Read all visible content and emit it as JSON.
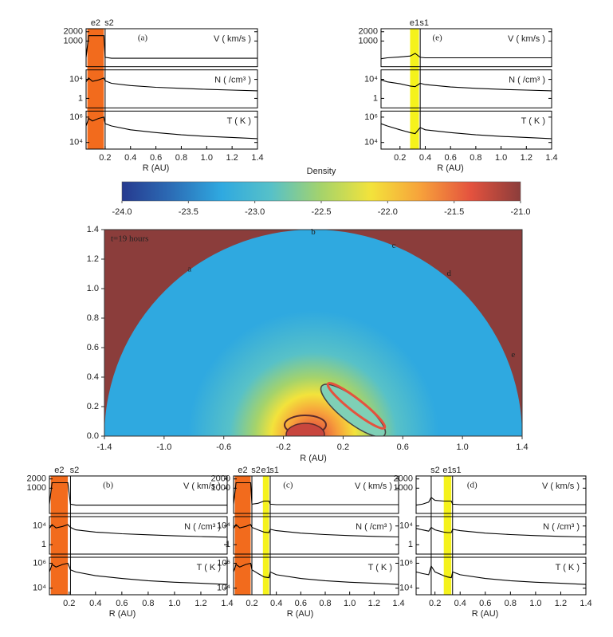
{
  "chart_data": [
    {
      "type": "profile",
      "label": "(a)",
      "xlabel": "R (AU)",
      "xlim": [
        0.05,
        1.4
      ],
      "xticks": [
        0.2,
        0.4,
        0.6,
        0.8,
        {
          "value": 1,
          "label": "1.0"
        },
        1.2,
        1.4
      ],
      "bands": [
        {
          "label": "e2",
          "x": [
            0.06,
            0.19
          ],
          "color": "#f26b1d"
        }
      ],
      "shocks": [
        {
          "label": "s2",
          "x": 0.2
        }
      ],
      "x": [
        0.05,
        0.07,
        0.1,
        0.15,
        0.19,
        0.2,
        0.25,
        0.4,
        0.6,
        0.8,
        1.0,
        1.2,
        1.4
      ],
      "rows": [
        {
          "name": "V ( km/s )",
          "log": true,
          "ylim": [
            150,
            2500
          ],
          "yticks": [
            1000,
            2000
          ],
          "values": [
            300,
            1500,
            1500,
            1500,
            1500,
            300,
            280,
            280,
            280,
            280,
            280,
            280,
            280
          ]
        },
        {
          "name": "N ( /cm³ )",
          "log": true,
          "ylim": [
            0.01,
            1000000
          ],
          "yticks": [
            1,
            {
              "value": 10000,
              "label": "10⁴"
            }
          ],
          "values": [
            3000,
            20000,
            4000,
            8000,
            20000,
            5000,
            1500,
            500,
            220,
            130,
            80,
            55,
            40
          ]
        },
        {
          "name": "T ( K )",
          "log": true,
          "ylim": [
            3000,
            3000000
          ],
          "yticks": [
            {
              "value": 10000,
              "label": "10⁴"
            },
            {
              "value": 1000000,
              "label": "10⁶"
            }
          ],
          "values": [
            200000,
            800000,
            500000,
            800000,
            1000000,
            300000,
            200000,
            100000,
            60000,
            40000,
            30000,
            25000,
            20000
          ]
        }
      ]
    },
    {
      "type": "profile",
      "label": "(e)",
      "xlabel": "R (AU)",
      "xlim": [
        0.05,
        1.4
      ],
      "xticks": [
        0.2,
        0.4,
        0.6,
        0.8,
        {
          "value": 1,
          "label": "1.0"
        },
        1.2,
        1.4
      ],
      "bands": [
        {
          "label": "e1",
          "x": [
            0.28,
            0.35
          ],
          "color": "#f5f21c"
        }
      ],
      "shocks": [
        {
          "label": "s1",
          "x": 0.36
        }
      ],
      "x": [
        0.05,
        0.1,
        0.2,
        0.28,
        0.32,
        0.36,
        0.4,
        0.6,
        0.8,
        1.0,
        1.2,
        1.4
      ],
      "rows": [
        {
          "name": "V ( km/s )",
          "log": true,
          "ylim": [
            150,
            2500
          ],
          "yticks": [
            1000,
            2000
          ],
          "values": [
            270,
            290,
            310,
            330,
            400,
            300,
            290,
            290,
            290,
            290,
            290,
            290
          ]
        },
        {
          "name": "N ( /cm³ )",
          "log": true,
          "ylim": [
            0.01,
            1000000
          ],
          "yticks": [
            1,
            {
              "value": 10000,
              "label": "10⁴"
            }
          ],
          "values": [
            8000,
            3000,
            1200,
            400,
            300,
            1500,
            800,
            250,
            130,
            80,
            55,
            40
          ]
        },
        {
          "name": "T ( K )",
          "log": true,
          "ylim": [
            3000,
            3000000
          ],
          "yticks": [
            {
              "value": 10000,
              "label": "10⁴"
            },
            {
              "value": 1000000,
              "label": "10⁶"
            }
          ],
          "values": [
            300000,
            200000,
            100000,
            60000,
            50000,
            150000,
            100000,
            60000,
            40000,
            30000,
            25000,
            20000
          ]
        }
      ]
    },
    {
      "type": "density-map",
      "title": "Density",
      "annotation": "t=19 hours",
      "xlabel": "R (AU)",
      "colormap": [
        "#263a8f",
        "#2c6db6",
        "#2fa9e0",
        "#57c1c8",
        "#a5d36b",
        "#f3e33b",
        "#f7a13b",
        "#e4523e",
        "#8b3d3b"
      ],
      "clim": [
        -24,
        -21
      ],
      "cticks": [
        {
          "value": -24,
          "label": "-24.0"
        },
        -23.5,
        {
          "value": -23,
          "label": "-23.0"
        },
        -22.5,
        {
          "value": -22,
          "label": "-22.0"
        },
        -21.5,
        {
          "value": -21,
          "label": "-21.0"
        }
      ],
      "xlim": [
        -1.4,
        1.4
      ],
      "xticks": [
        -1.4,
        {
          "value": -1,
          "label": "-1.0"
        },
        -0.6,
        -0.2,
        0.2,
        0.6,
        {
          "value": 1,
          "label": "1.0"
        },
        1.4
      ],
      "ylim": [
        0,
        1.4
      ],
      "yticks": [
        {
          "value": 0,
          "label": "0.0"
        },
        0.2,
        0.4,
        0.6,
        0.8,
        {
          "value": 1,
          "label": "1.0"
        },
        1.2,
        1.4
      ],
      "points": [
        {
          "label": "a",
          "x": -0.83,
          "y": 1.13
        },
        {
          "label": "b",
          "x": 0.0,
          "y": 1.38
        },
        {
          "label": "c",
          "x": 0.54,
          "y": 1.29
        },
        {
          "label": "d",
          "x": 0.91,
          "y": 1.1
        },
        {
          "label": "e",
          "x": 1.34,
          "y": 0.55
        }
      ]
    },
    {
      "type": "profile",
      "label": "(b)",
      "xlabel": "R (AU)",
      "xlim": [
        0.05,
        1.4
      ],
      "xticks": [
        0.2,
        0.4,
        0.6,
        0.8,
        {
          "value": 1,
          "label": "1.0"
        },
        1.2,
        1.4
      ],
      "bands": [
        {
          "label": "e2",
          "x": [
            0.06,
            0.19
          ],
          "color": "#f26b1d"
        }
      ],
      "shocks": [
        {
          "label": "s2",
          "x": 0.21
        }
      ],
      "x": [
        0.05,
        0.07,
        0.1,
        0.15,
        0.19,
        0.21,
        0.25,
        0.4,
        0.6,
        0.8,
        1.0,
        1.2,
        1.4
      ],
      "rows": [
        {
          "name": "V ( km/s )",
          "log": true,
          "ylim": [
            150,
            2500
          ],
          "yticks": [
            1000,
            2000
          ],
          "values": [
            300,
            1500,
            1500,
            1500,
            1500,
            300,
            280,
            280,
            280,
            280,
            280,
            280,
            280
          ]
        },
        {
          "name": "N ( /cm³ )",
          "log": true,
          "ylim": [
            0.01,
            1000000
          ],
          "yticks": [
            1,
            {
              "value": 10000,
              "label": "10⁴"
            }
          ],
          "values": [
            3000,
            20000,
            4000,
            8000,
            20000,
            5000,
            1500,
            500,
            220,
            130,
            80,
            55,
            40
          ]
        },
        {
          "name": "T ( K )",
          "log": true,
          "ylim": [
            3000,
            3000000
          ],
          "yticks": [
            {
              "value": 10000,
              "label": "10⁴"
            },
            {
              "value": 1000000,
              "label": "10⁶"
            }
          ],
          "values": [
            200000,
            800000,
            500000,
            800000,
            1000000,
            300000,
            200000,
            100000,
            60000,
            40000,
            30000,
            25000,
            20000
          ]
        }
      ]
    },
    {
      "type": "profile",
      "label": "(c)",
      "xlabel": "R (AU)",
      "xlim": [
        0.05,
        1.4
      ],
      "xticks": [
        0.2,
        0.4,
        0.6,
        0.8,
        {
          "value": 1,
          "label": "1.0"
        },
        1.2,
        1.4
      ],
      "bands": [
        {
          "label": "e2",
          "x": [
            0.06,
            0.19
          ],
          "color": "#f26b1d"
        },
        {
          "label": "e1",
          "x": [
            0.29,
            0.34
          ],
          "color": "#f5f21c"
        }
      ],
      "shocks": [
        {
          "label": "s2",
          "x": 0.2
        },
        {
          "label": "s1",
          "x": 0.35
        }
      ],
      "x": [
        0.05,
        0.07,
        0.1,
        0.15,
        0.19,
        0.2,
        0.25,
        0.3,
        0.34,
        0.35,
        0.4,
        0.6,
        0.8,
        1.0,
        1.2,
        1.4
      ],
      "rows": [
        {
          "name": "V ( km/s )",
          "log": true,
          "ylim": [
            150,
            2500
          ],
          "yticks": [
            1000,
            2000
          ],
          "values": [
            300,
            1500,
            1500,
            1500,
            1500,
            300,
            320,
            380,
            380,
            300,
            290,
            290,
            290,
            290,
            290,
            290
          ]
        },
        {
          "name": "N ( /cm³ )",
          "log": true,
          "ylim": [
            0.01,
            1000000
          ],
          "yticks": [
            1,
            {
              "value": 10000,
              "label": "10⁴"
            }
          ],
          "values": [
            3000,
            20000,
            4000,
            8000,
            20000,
            5000,
            1500,
            500,
            400,
            2000,
            1000,
            300,
            150,
            90,
            60,
            45
          ]
        },
        {
          "name": "T ( K )",
          "log": true,
          "ylim": [
            3000,
            3000000
          ],
          "yticks": [
            {
              "value": 10000,
              "label": "10⁴"
            },
            {
              "value": 1000000,
              "label": "10⁶"
            }
          ],
          "values": [
            200000,
            800000,
            500000,
            800000,
            1000000,
            300000,
            150000,
            80000,
            70000,
            200000,
            120000,
            60000,
            40000,
            30000,
            25000,
            20000
          ]
        }
      ]
    },
    {
      "type": "profile",
      "label": "(d)",
      "xlabel": "R (AU)",
      "xlim": [
        0.05,
        1.4
      ],
      "xticks": [
        0.2,
        0.4,
        0.6,
        0.8,
        {
          "value": 1,
          "label": "1.0"
        },
        1.2,
        1.4
      ],
      "bands": [
        {
          "label": "e1",
          "x": [
            0.27,
            0.33
          ],
          "color": "#f5f21c"
        }
      ],
      "shocks": [
        {
          "label": "s2",
          "x": 0.17
        },
        {
          "label": "s1",
          "x": 0.34
        }
      ],
      "x": [
        0.05,
        0.1,
        0.15,
        0.17,
        0.2,
        0.27,
        0.3,
        0.33,
        0.34,
        0.4,
        0.6,
        0.8,
        1.0,
        1.2,
        1.4
      ],
      "rows": [
        {
          "name": "V ( km/s )",
          "log": true,
          "ylim": [
            150,
            2500
          ],
          "yticks": [
            1000,
            2000
          ],
          "values": [
            280,
            300,
            350,
            500,
            400,
            380,
            380,
            380,
            300,
            290,
            290,
            290,
            290,
            290,
            290
          ]
        },
        {
          "name": "N ( /cm³ )",
          "log": true,
          "ylim": [
            0.01,
            1000000
          ],
          "yticks": [
            1,
            {
              "value": 10000,
              "label": "10⁴"
            }
          ],
          "values": [
            3000,
            1500,
            800,
            5000,
            1500,
            500,
            400,
            400,
            2000,
            1000,
            300,
            150,
            90,
            60,
            45
          ]
        },
        {
          "name": "T ( K )",
          "log": true,
          "ylim": [
            3000,
            3000000
          ],
          "yticks": [
            {
              "value": 10000,
              "label": "10⁴"
            },
            {
              "value": 1000000,
              "label": "10⁶"
            }
          ],
          "values": [
            200000,
            150000,
            120000,
            600000,
            200000,
            100000,
            80000,
            70000,
            200000,
            120000,
            60000,
            40000,
            30000,
            25000,
            20000
          ]
        }
      ]
    }
  ]
}
